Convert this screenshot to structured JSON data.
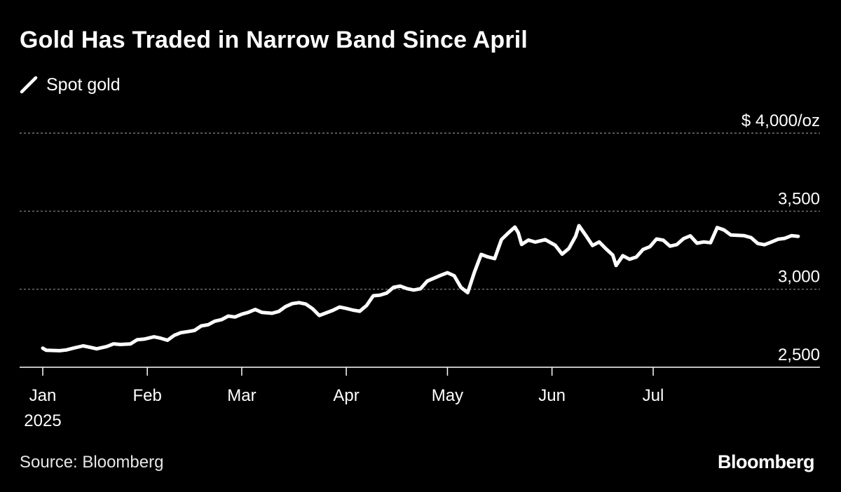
{
  "header": {
    "title": "Gold Has Traded in Narrow Band Since April"
  },
  "legend": {
    "label": "Spot gold",
    "swatch_color": "#ffffff"
  },
  "footer": {
    "source": "Source: Bloomberg",
    "brand": "Bloomberg"
  },
  "colors": {
    "background": "#000000",
    "line": "#ffffff",
    "grid": "#8c8c8c",
    "text": "#ffffff"
  },
  "chart_data": {
    "type": "line",
    "title": "Gold Has Traded in Narrow Band Since April",
    "xlabel": "",
    "ylabel": "",
    "y_unit_label": "$ 4,000/oz",
    "ylim": [
      2500,
      4000
    ],
    "y_ticks": [
      2500,
      3000,
      3500,
      4000
    ],
    "y_tick_labels": [
      "2,500",
      "3,000",
      "3,500",
      "$ 4,000/oz"
    ],
    "grid": "horizontal dashed",
    "legend_position": "top-left",
    "x_ticks": [
      {
        "date": "2025-01-01",
        "label": "Jan",
        "sublabel": "2025"
      },
      {
        "date": "2025-02-01",
        "label": "Feb",
        "sublabel": ""
      },
      {
        "date": "2025-03-01",
        "label": "Mar",
        "sublabel": ""
      },
      {
        "date": "2025-04-01",
        "label": "Apr",
        "sublabel": ""
      },
      {
        "date": "2025-05-01",
        "label": "May",
        "sublabel": ""
      },
      {
        "date": "2025-06-01",
        "label": "Jun",
        "sublabel": ""
      },
      {
        "date": "2025-07-01",
        "label": "Jul",
        "sublabel": ""
      }
    ],
    "series": [
      {
        "name": "Spot gold",
        "points": [
          [
            "2025-01-01",
            2622
          ],
          [
            "2025-01-02",
            2609
          ],
          [
            "2025-01-06",
            2606
          ],
          [
            "2025-01-08",
            2611
          ],
          [
            "2025-01-10",
            2622
          ],
          [
            "2025-01-13",
            2637
          ],
          [
            "2025-01-15",
            2628
          ],
          [
            "2025-01-17",
            2618
          ],
          [
            "2025-01-20",
            2633
          ],
          [
            "2025-01-22",
            2650
          ],
          [
            "2025-01-24",
            2646
          ],
          [
            "2025-01-27",
            2649
          ],
          [
            "2025-01-29",
            2676
          ],
          [
            "2025-01-31",
            2680
          ],
          [
            "2025-02-03",
            2695
          ],
          [
            "2025-02-05",
            2686
          ],
          [
            "2025-02-07",
            2673
          ],
          [
            "2025-02-09",
            2705
          ],
          [
            "2025-02-11",
            2722
          ],
          [
            "2025-02-13",
            2728
          ],
          [
            "2025-02-15",
            2736
          ],
          [
            "2025-02-17",
            2765
          ],
          [
            "2025-02-19",
            2772
          ],
          [
            "2025-02-21",
            2795
          ],
          [
            "2025-02-23",
            2805
          ],
          [
            "2025-02-25",
            2828
          ],
          [
            "2025-02-27",
            2822
          ],
          [
            "2025-03-01",
            2840
          ],
          [
            "2025-03-03",
            2852
          ],
          [
            "2025-03-05",
            2870
          ],
          [
            "2025-03-07",
            2851
          ],
          [
            "2025-03-10",
            2846
          ],
          [
            "2025-03-12",
            2858
          ],
          [
            "2025-03-14",
            2889
          ],
          [
            "2025-03-16",
            2908
          ],
          [
            "2025-03-18",
            2914
          ],
          [
            "2025-03-20",
            2905
          ],
          [
            "2025-03-22",
            2875
          ],
          [
            "2025-03-24",
            2832
          ],
          [
            "2025-03-26",
            2848
          ],
          [
            "2025-03-28",
            2864
          ],
          [
            "2025-03-30",
            2886
          ],
          [
            "2025-04-01",
            2877
          ],
          [
            "2025-04-03",
            2866
          ],
          [
            "2025-04-05",
            2859
          ],
          [
            "2025-04-07",
            2895
          ],
          [
            "2025-04-09",
            2958
          ],
          [
            "2025-04-11",
            2962
          ],
          [
            "2025-04-13",
            2975
          ],
          [
            "2025-04-15",
            3012
          ],
          [
            "2025-04-17",
            3020
          ],
          [
            "2025-04-19",
            3004
          ],
          [
            "2025-04-21",
            2995
          ],
          [
            "2025-04-23",
            3003
          ],
          [
            "2025-04-25",
            3052
          ],
          [
            "2025-04-27",
            3071
          ],
          [
            "2025-04-29",
            3089
          ],
          [
            "2025-05-01",
            3106
          ],
          [
            "2025-05-03",
            3086
          ],
          [
            "2025-05-05",
            3012
          ],
          [
            "2025-05-07",
            2978
          ],
          [
            "2025-05-09",
            3110
          ],
          [
            "2025-05-11",
            3223
          ],
          [
            "2025-05-13",
            3207
          ],
          [
            "2025-05-15",
            3196
          ],
          [
            "2025-05-17",
            3318
          ],
          [
            "2025-05-19",
            3360
          ],
          [
            "2025-05-21",
            3398
          ],
          [
            "2025-05-22",
            3362
          ],
          [
            "2025-05-23",
            3287
          ],
          [
            "2025-05-25",
            3315
          ],
          [
            "2025-05-27",
            3302
          ],
          [
            "2025-05-30",
            3318
          ],
          [
            "2025-06-02",
            3281
          ],
          [
            "2025-06-04",
            3225
          ],
          [
            "2025-06-06",
            3261
          ],
          [
            "2025-06-08",
            3339
          ],
          [
            "2025-06-09",
            3407
          ],
          [
            "2025-06-11",
            3345
          ],
          [
            "2025-06-13",
            3280
          ],
          [
            "2025-06-15",
            3303
          ],
          [
            "2025-06-17",
            3259
          ],
          [
            "2025-06-19",
            3219
          ],
          [
            "2025-06-20",
            3152
          ],
          [
            "2025-06-22",
            3215
          ],
          [
            "2025-06-24",
            3192
          ],
          [
            "2025-06-26",
            3206
          ],
          [
            "2025-06-28",
            3255
          ],
          [
            "2025-06-30",
            3272
          ],
          [
            "2025-07-02",
            3322
          ],
          [
            "2025-07-04",
            3314
          ],
          [
            "2025-07-06",
            3276
          ],
          [
            "2025-07-08",
            3286
          ],
          [
            "2025-07-10",
            3324
          ],
          [
            "2025-07-12",
            3342
          ],
          [
            "2025-07-14",
            3295
          ],
          [
            "2025-07-16",
            3303
          ],
          [
            "2025-07-18",
            3298
          ],
          [
            "2025-07-20",
            3395
          ],
          [
            "2025-07-22",
            3380
          ],
          [
            "2025-07-24",
            3348
          ],
          [
            "2025-07-26",
            3345
          ],
          [
            "2025-07-28",
            3343
          ],
          [
            "2025-07-30",
            3331
          ],
          [
            "2025-08-01",
            3293
          ],
          [
            "2025-08-03",
            3285
          ],
          [
            "2025-08-05",
            3302
          ],
          [
            "2025-08-07",
            3320
          ],
          [
            "2025-08-09",
            3326
          ],
          [
            "2025-08-11",
            3343
          ],
          [
            "2025-08-13",
            3339
          ]
        ]
      }
    ]
  }
}
